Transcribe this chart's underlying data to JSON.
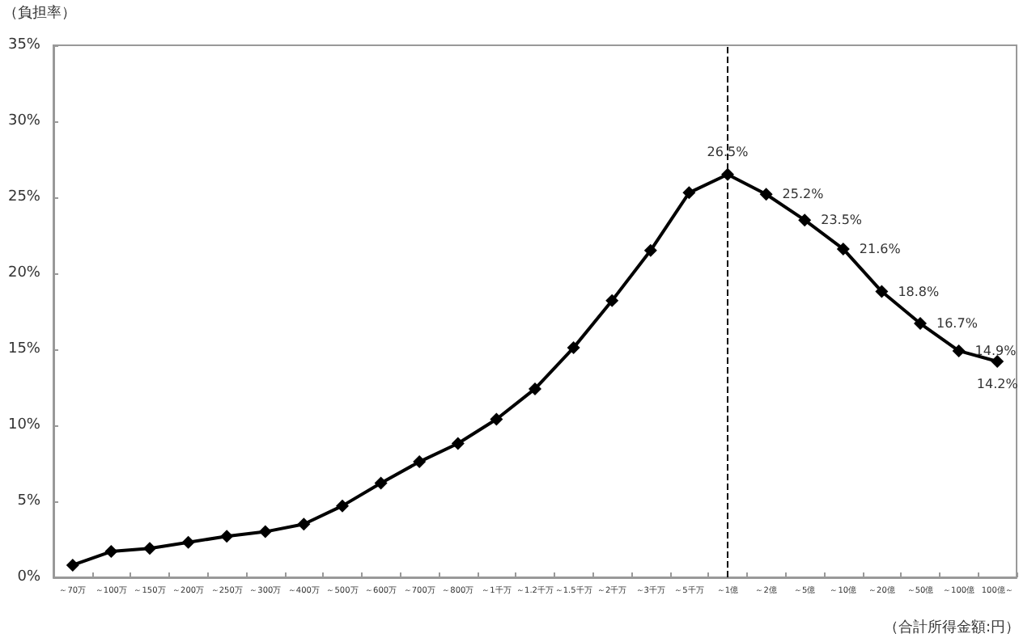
{
  "chart_data": {
    "type": "line",
    "xlabel": "（合計所得金額:円）",
    "ylabel": "（負担率）",
    "categories": [
      "～70万",
      "～100万",
      "～150万",
      "～200万",
      "～250万",
      "～300万",
      "～400万",
      "～500万",
      "～600万",
      "～700万",
      "～800万",
      "～1千万",
      "～1.2千万",
      "～1.5千万",
      "～2千万",
      "～3千万",
      "～5千万",
      "～1億",
      "～2億",
      "～5億",
      "～10億",
      "～20億",
      "～50億",
      "～100億",
      "100億～"
    ],
    "series": [
      {
        "color": "#000000",
        "values": [
          0.8,
          1.7,
          1.9,
          2.3,
          2.7,
          3.0,
          3.5,
          4.7,
          6.2,
          7.6,
          8.8,
          10.4,
          12.4,
          15.1,
          18.2,
          21.5,
          25.3,
          26.5,
          25.2,
          23.5,
          21.6,
          18.8,
          16.7,
          14.9,
          14.2
        ],
        "value_labels": [
          null,
          null,
          null,
          null,
          null,
          null,
          null,
          null,
          null,
          null,
          null,
          null,
          null,
          null,
          null,
          null,
          null,
          "26.5%",
          "25.2%",
          "23.5%",
          "21.6%",
          "18.8%",
          "16.7%",
          "14.9%",
          "14.2%"
        ]
      }
    ],
    "ylim": [
      0,
      35
    ],
    "yticks": [
      {
        "value": 0,
        "label": "0%"
      },
      {
        "value": 5,
        "label": "5%"
      },
      {
        "value": 10,
        "label": "10%"
      },
      {
        "value": 15,
        "label": "15%"
      },
      {
        "value": 20,
        "label": "20%"
      },
      {
        "value": 25,
        "label": "25%"
      },
      {
        "value": 30,
        "label": "30%"
      },
      {
        "value": 35,
        "label": "35%"
      }
    ],
    "ref_lines": [
      {
        "axis": "x",
        "value": "～1億",
        "color": "#000000",
        "line_style": "dashed"
      }
    ],
    "grid": false,
    "marker": "diamond",
    "line_style": "solid"
  }
}
